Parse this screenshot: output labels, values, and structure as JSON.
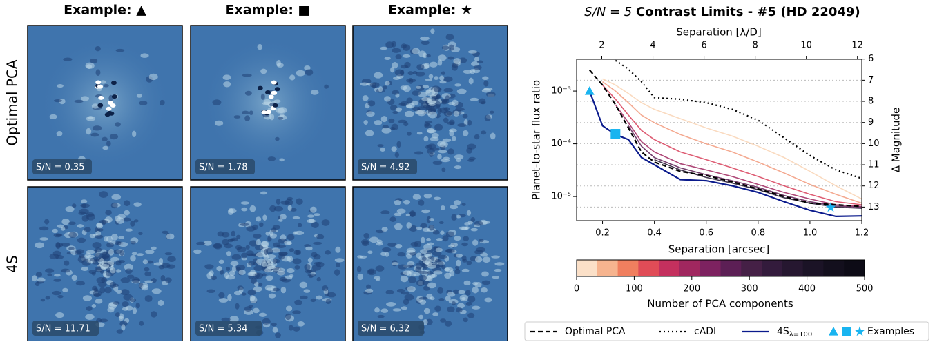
{
  "panels": {
    "column_titles": [
      "Example: ▲",
      "Example: ■",
      "Example: ★"
    ],
    "row_titles": [
      "Optimal PCA",
      "4S"
    ],
    "snr_labels": [
      [
        "S/N = 0.35",
        "S/N = 1.78",
        "S/N = 4.92"
      ],
      [
        "S/N = 11.71",
        "S/N = 5.34",
        "S/N = 6.32"
      ]
    ]
  },
  "chart_data": {
    "type": "line",
    "title_prefix": "S/N = 5",
    "title": "Contrast Limits - #5 (HD 22049)",
    "x_label": "Separation [arcsec]",
    "y_label": "Planet-to-star flux ratio",
    "x2_label": "Separation [λ/D]",
    "y2_label": "Δ Magnitude",
    "log_y": true,
    "xlim": [
      0.1,
      1.2
    ],
    "xticks": [
      0.2,
      0.4,
      0.6,
      0.8,
      {
        "value": 1,
        "label": "1.0"
      },
      1.2
    ],
    "x2lim": [
      1.014,
      12.17
    ],
    "x2ticks": [
      2,
      4,
      6,
      8,
      10,
      12
    ],
    "ylim": [
      3.5e-06,
      0.004
    ],
    "yticks": [
      {
        "value": 1e-05,
        "label": "10⁻⁵"
      },
      {
        "value": 0.0001,
        "label": "10⁻⁴"
      },
      {
        "value": 0.001,
        "label": "10⁻³"
      }
    ],
    "y2lim": [
      13.64,
      6.01
    ],
    "y2ticks": [
      6,
      7,
      8,
      9,
      10,
      11,
      12,
      13
    ],
    "y2_grid": true,
    "x": [
      0.15,
      0.2,
      0.25,
      0.3,
      0.35,
      0.4,
      0.5,
      0.6,
      0.7,
      0.8,
      0.9,
      1.0,
      1.1,
      1.2
    ],
    "pca_curves": [
      {
        "color": "#f9d3b4",
        "values": [
          null,
          0.0017,
          0.0013,
          0.0009,
          0.0006,
          0.00045,
          0.0003,
          0.0002,
          0.00014,
          9e-05,
          5.5e-05,
          3e-05,
          1.6e-05,
          9e-06
        ]
      },
      {
        "color": "#f29a7c",
        "values": [
          null,
          0.0015,
          0.001,
          0.0006,
          0.00035,
          0.00025,
          0.00015,
          0.0001,
          7e-05,
          4.5e-05,
          2.8e-05,
          1.7e-05,
          1.1e-05,
          7.5e-06
        ]
      },
      {
        "color": "#d8405a",
        "values": [
          null,
          0.0013,
          0.0007,
          0.00035,
          0.00018,
          0.00012,
          7e-05,
          5e-05,
          3.5e-05,
          2.4e-05,
          1.6e-05,
          1.1e-05,
          8e-06,
          7e-06
        ]
      },
      {
        "color": "#a0275f",
        "values": [
          null,
          null,
          0.00055,
          0.00025,
          0.00011,
          7e-05,
          4.2e-05,
          3.2e-05,
          2.4e-05,
          1.7e-05,
          1.2e-05,
          9e-06,
          7e-06,
          6.5e-06
        ]
      },
      {
        "color": "#5c1f55",
        "values": [
          null,
          null,
          null,
          0.00022,
          9e-05,
          5.5e-05,
          3.5e-05,
          2.6e-05,
          2e-05,
          1.5e-05,
          1.05e-05,
          8e-06,
          6.6e-06,
          6.3e-06
        ]
      },
      {
        "color": "#221430",
        "values": [
          null,
          null,
          null,
          null,
          null,
          5e-05,
          3.2e-05,
          2.3e-05,
          1.8e-05,
          1.35e-05,
          9.5e-06,
          7.5e-06,
          6.3e-06,
          6e-06
        ]
      }
    ],
    "series": [
      {
        "name": "Optimal PCA",
        "color": "#000000",
        "dash": "7,4",
        "values": [
          0.0025,
          0.0013,
          0.00055,
          0.0002,
          7e-05,
          4.5e-05,
          3e-05,
          2.5e-05,
          1.9e-05,
          1.4e-05,
          1e-05,
          7.5e-06,
          7e-06,
          6.5e-06
        ]
      },
      {
        "name": "cADI",
        "color": "#000000",
        "dash": "2,4",
        "values": [
          null,
          null,
          0.0038,
          0.0026,
          0.0015,
          0.00075,
          0.0007,
          0.0006,
          0.00045,
          0.00028,
          0.00013,
          6e-05,
          3.2e-05,
          2.2e-05
        ]
      },
      {
        "name": "4S",
        "name_subscript": "λ=100",
        "color": "#0a1a8c",
        "dash": "none",
        "values": [
          0.001,
          0.00022,
          0.00015,
          0.00012,
          5.5e-05,
          4e-05,
          2.1e-05,
          2e-05,
          1.6e-05,
          1.2e-05,
          8e-06,
          5.5e-06,
          4.2e-06,
          4.3e-06
        ]
      }
    ],
    "examples": {
      "name": "Examples",
      "color": "#19b4f0",
      "points": [
        {
          "marker": "triangle",
          "x": 0.15,
          "y": 0.001
        },
        {
          "marker": "square",
          "x": 0.25,
          "y": 0.000155
        },
        {
          "marker": "star",
          "x": 1.08,
          "y": 6.2e-06
        }
      ]
    },
    "colorbar": {
      "label": "Number of PCA components",
      "lim": [
        0,
        500
      ],
      "ticks": [
        0,
        100,
        200,
        300,
        400,
        500
      ],
      "colors": [
        "#fbe0c8",
        "#f6b48f",
        "#f07f5f",
        "#e04c57",
        "#c4305e",
        "#a0275f",
        "#7d2260",
        "#5c1f55",
        "#452046",
        "#331b3c",
        "#261730",
        "#1b1326",
        "#130f1d",
        "#0d0b16"
      ]
    }
  }
}
